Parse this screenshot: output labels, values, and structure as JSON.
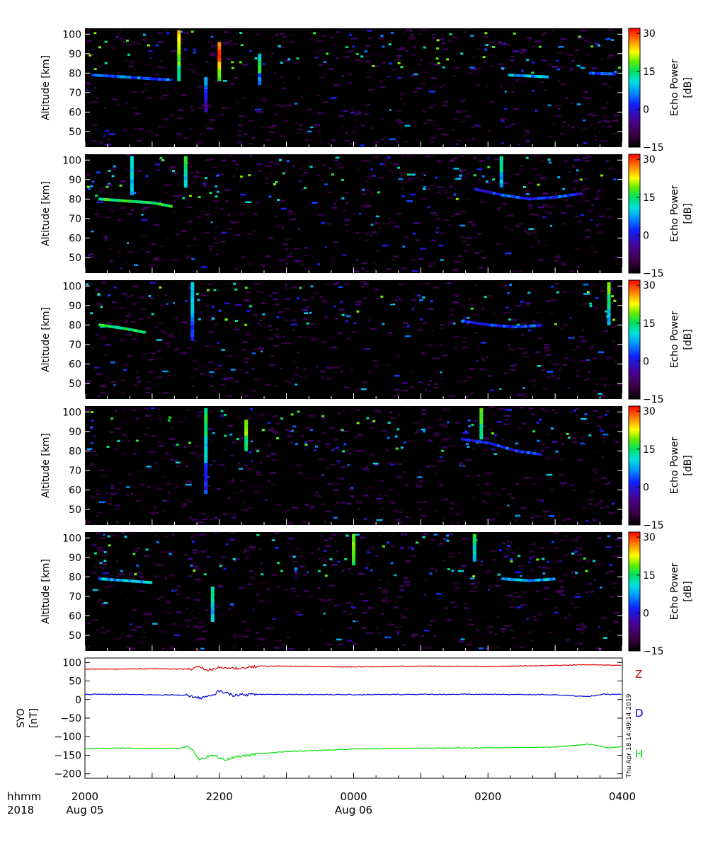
{
  "chart_data": [
    {
      "type": "heatmap",
      "panel": 1,
      "ylabel": "Altitude [km]",
      "yticks": [
        50,
        60,
        70,
        80,
        90,
        100
      ],
      "ylim": [
        42,
        103
      ],
      "colorbar": {
        "label_line1": "Echo Power",
        "label_line2": "[dB]",
        "ticks": [
          "30",
          "15",
          "0",
          "−15"
        ],
        "range": [
          -15,
          32
        ]
      },
      "xlim_hours": [
        20,
        28
      ],
      "features": [
        {
          "kind": "layer",
          "points": [
            [
              20.1,
              79
            ],
            [
              20.6,
              78
            ],
            [
              21.0,
              77
            ],
            [
              21.3,
              76.5
            ]
          ],
          "level": 2
        },
        {
          "kind": "column",
          "x": 21.4,
          "y0": 76,
          "y1": 102,
          "levels": [
            8,
            14,
            18,
            22
          ]
        },
        {
          "kind": "column",
          "x": 22.0,
          "y0": 76,
          "y1": 96,
          "levels": [
            14,
            22,
            30,
            26
          ]
        },
        {
          "kind": "column",
          "x": 21.8,
          "y0": 60,
          "y1": 78,
          "levels": [
            -4,
            0,
            4
          ]
        },
        {
          "kind": "column",
          "x": 22.6,
          "y0": 74,
          "y1": 90,
          "levels": [
            2,
            12,
            6
          ]
        },
        {
          "kind": "layer",
          "points": [
            [
              26.3,
              79
            ],
            [
              26.6,
              78.5
            ],
            [
              26.9,
              78
            ]
          ],
          "level": 4
        },
        {
          "kind": "layer",
          "points": [
            [
              27.5,
              80
            ],
            [
              27.9,
              79.5
            ]
          ],
          "level": 0
        }
      ]
    },
    {
      "type": "heatmap",
      "panel": 2,
      "ylabel": "Altitude [km]",
      "yticks": [
        50,
        60,
        70,
        80,
        90,
        100
      ],
      "ylim": [
        42,
        103
      ],
      "colorbar": {
        "label_line1": "Echo Power",
        "label_line2": "[dB]",
        "ticks": [
          "30",
          "15",
          "0",
          "−15"
        ],
        "range": [
          -15,
          32
        ]
      },
      "xlim_hours": [
        20,
        28
      ],
      "features": [
        {
          "kind": "layer",
          "points": [
            [
              20.2,
              80
            ],
            [
              20.6,
              79
            ],
            [
              21.0,
              78
            ],
            [
              21.3,
              76
            ]
          ],
          "level": 10
        },
        {
          "kind": "column",
          "x": 20.7,
          "y0": 82,
          "y1": 101,
          "levels": [
            4,
            6
          ]
        },
        {
          "kind": "column",
          "x": 21.5,
          "y0": 86,
          "y1": 101,
          "levels": [
            6,
            10
          ]
        },
        {
          "kind": "layer",
          "points": [
            [
              25.8,
              85
            ],
            [
              26.2,
              82
            ],
            [
              26.6,
              80
            ],
            [
              27.0,
              81
            ],
            [
              27.4,
              83
            ]
          ],
          "level": 0
        },
        {
          "kind": "column",
          "x": 26.2,
          "y0": 86,
          "y1": 101,
          "levels": [
            4,
            8
          ]
        }
      ]
    },
    {
      "type": "heatmap",
      "panel": 3,
      "ylabel": "Altitude [km]",
      "yticks": [
        50,
        60,
        70,
        80,
        90,
        100
      ],
      "ylim": [
        42,
        103
      ],
      "colorbar": {
        "label_line1": "Echo Power",
        "label_line2": "[dB]",
        "ticks": [
          "30",
          "15",
          "0",
          "−15"
        ],
        "range": [
          -15,
          32
        ]
      },
      "xlim_hours": [
        20,
        28
      ],
      "features": [
        {
          "kind": "layer",
          "points": [
            [
              20.2,
              80
            ],
            [
              20.6,
              78
            ],
            [
              20.9,
              76
            ]
          ],
          "level": 10
        },
        {
          "kind": "column",
          "x": 21.6,
          "y0": 72,
          "y1": 101,
          "levels": [
            0,
            4,
            6
          ]
        },
        {
          "kind": "layer",
          "points": [
            [
              25.6,
              82
            ],
            [
              26.0,
              80
            ],
            [
              26.4,
              79
            ],
            [
              26.8,
              80
            ]
          ],
          "level": 0
        },
        {
          "kind": "column",
          "x": 27.8,
          "y0": 80,
          "y1": 101,
          "levels": [
            4,
            10,
            14
          ]
        }
      ]
    },
    {
      "type": "heatmap",
      "panel": 4,
      "ylabel": "Altitude [km]",
      "yticks": [
        50,
        60,
        70,
        80,
        90,
        100
      ],
      "ylim": [
        42,
        103
      ],
      "colorbar": {
        "label_line1": "Echo Power",
        "label_line2": "[dB]",
        "ticks": [
          "30",
          "15",
          "0",
          "−15"
        ],
        "range": [
          -15,
          32
        ]
      },
      "xlim_hours": [
        20,
        28
      ],
      "features": [
        {
          "kind": "column",
          "x": 21.8,
          "y0": 58,
          "y1": 101,
          "levels": [
            0,
            6,
            10
          ]
        },
        {
          "kind": "column",
          "x": 22.4,
          "y0": 80,
          "y1": 96,
          "levels": [
            10,
            16
          ]
        },
        {
          "kind": "layer",
          "points": [
            [
              25.6,
              86
            ],
            [
              26.0,
              84
            ],
            [
              26.4,
              80
            ],
            [
              26.8,
              78
            ]
          ],
          "level": 0
        },
        {
          "kind": "column",
          "x": 25.9,
          "y0": 86,
          "y1": 101,
          "levels": [
            8,
            14
          ]
        }
      ]
    },
    {
      "type": "heatmap",
      "panel": 5,
      "ylabel": "Altitude [km]",
      "yticks": [
        50,
        60,
        70,
        80,
        90,
        100
      ],
      "ylim": [
        42,
        103
      ],
      "colorbar": {
        "label_line1": "Echo Power",
        "label_line2": "[dB]",
        "ticks": [
          "30",
          "15",
          "0",
          "−15"
        ],
        "range": [
          -15,
          32
        ]
      },
      "xlim_hours": [
        20,
        28
      ],
      "features": [
        {
          "kind": "layer",
          "points": [
            [
              20.2,
              79
            ],
            [
              20.6,
              78
            ],
            [
              21.0,
              77
            ]
          ],
          "level": 4
        },
        {
          "kind": "column",
          "x": 21.9,
          "y0": 57,
          "y1": 75,
          "levels": [
            4,
            8
          ]
        },
        {
          "kind": "column",
          "x": 24.0,
          "y0": 86,
          "y1": 101,
          "levels": [
            12,
            14
          ]
        },
        {
          "kind": "layer",
          "points": [
            [
              26.2,
              79
            ],
            [
              26.6,
              78
            ],
            [
              27.0,
              79
            ]
          ],
          "level": 4
        },
        {
          "kind": "column",
          "x": 25.8,
          "y0": 88,
          "y1": 101,
          "levels": [
            6,
            10
          ]
        }
      ]
    },
    {
      "type": "line",
      "ylabel_line1": "SYO",
      "ylabel_line2": "[nT]",
      "yticks": [
        "100",
        "50",
        "0",
        "−50",
        "−100",
        "−150",
        "−200"
      ],
      "ytick_values": [
        100,
        50,
        0,
        -50,
        -100,
        -150,
        -200
      ],
      "ylim": [
        -212,
        112
      ],
      "xlim_hours": [
        20,
        28
      ],
      "series": [
        {
          "name": "Z",
          "color": "#e00000",
          "points": [
            [
              20.0,
              82
            ],
            [
              20.5,
              82
            ],
            [
              21.0,
              83
            ],
            [
              21.6,
              82
            ],
            [
              21.7,
              92
            ],
            [
              21.8,
              78
            ],
            [
              22.0,
              86
            ],
            [
              22.3,
              84
            ],
            [
              22.6,
              90
            ],
            [
              23.0,
              90
            ],
            [
              24.0,
              88
            ],
            [
              25.0,
              90
            ],
            [
              26.0,
              89
            ],
            [
              27.0,
              92
            ],
            [
              27.4,
              94
            ],
            [
              28.0,
              92
            ]
          ]
        },
        {
          "name": "D",
          "color": "#0000cc",
          "points": [
            [
              20.0,
              14
            ],
            [
              20.5,
              14
            ],
            [
              21.0,
              13
            ],
            [
              21.5,
              12
            ],
            [
              21.7,
              4
            ],
            [
              21.9,
              10
            ],
            [
              22.0,
              24
            ],
            [
              22.2,
              12
            ],
            [
              22.5,
              14
            ],
            [
              23.0,
              14
            ],
            [
              24.0,
              13
            ],
            [
              25.0,
              14
            ],
            [
              26.0,
              14
            ],
            [
              27.0,
              13
            ],
            [
              27.5,
              8
            ],
            [
              27.7,
              14
            ],
            [
              28.0,
              14
            ]
          ]
        },
        {
          "name": "H",
          "color": "#00dd00",
          "points": [
            [
              20.0,
              -132
            ],
            [
              20.5,
              -131
            ],
            [
              21.0,
              -132
            ],
            [
              21.4,
              -131
            ],
            [
              21.55,
              -126
            ],
            [
              21.7,
              -162
            ],
            [
              21.9,
              -150
            ],
            [
              22.1,
              -162
            ],
            [
              22.4,
              -150
            ],
            [
              23.0,
              -140
            ],
            [
              24.0,
              -133
            ],
            [
              25.0,
              -131
            ],
            [
              26.0,
              -130
            ],
            [
              27.0,
              -128
            ],
            [
              27.5,
              -120
            ],
            [
              27.8,
              -130
            ],
            [
              28.0,
              -127
            ]
          ]
        }
      ],
      "legend": [
        "Z",
        "D",
        "H"
      ],
      "side_stamp": "Thu Apr 18 14:49:14 2019"
    }
  ],
  "x_axis": {
    "row1_label": "hhmm",
    "row2_label": "2018",
    "ticks": [
      {
        "hour": 20,
        "time": "2000",
        "date": "Aug 05"
      },
      {
        "hour": 22,
        "time": "2200",
        "date": ""
      },
      {
        "hour": 24,
        "time": "0000",
        "date": "Aug 06"
      },
      {
        "hour": 26,
        "time": "0200",
        "date": ""
      },
      {
        "hour": 28,
        "time": "0400",
        "date": ""
      }
    ]
  }
}
